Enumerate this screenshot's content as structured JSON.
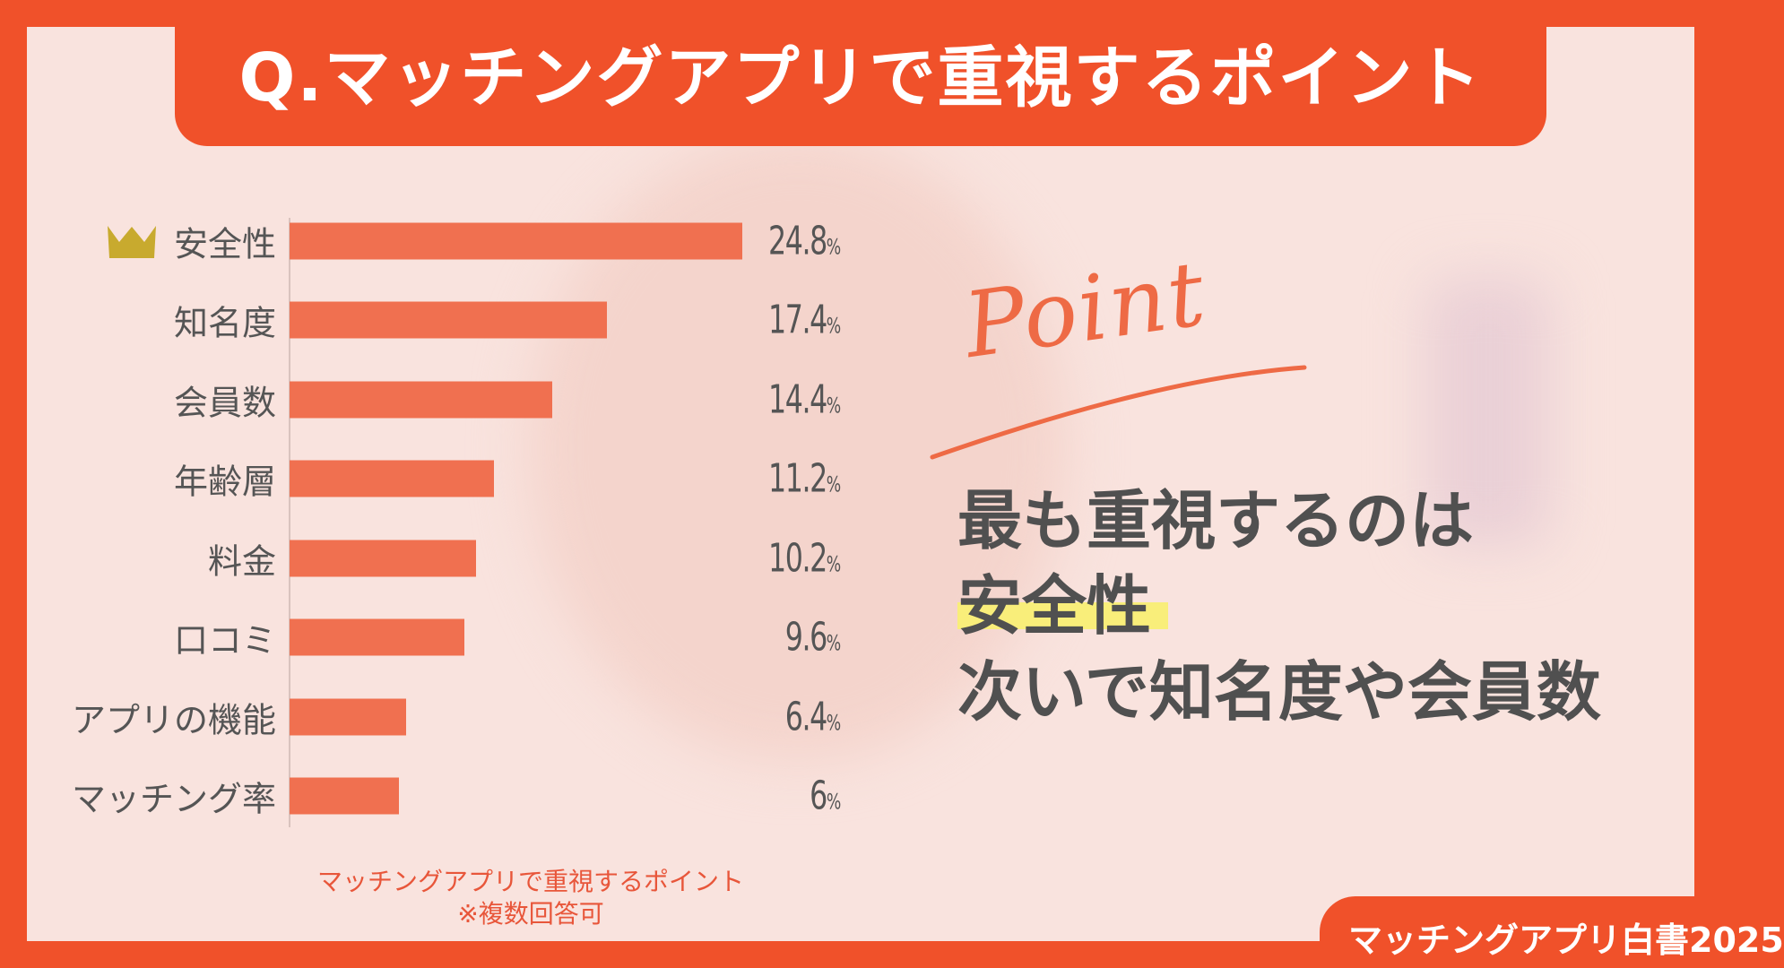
{
  "title": "Q.マッチングアプリで重視するポイント",
  "chart_data": {
    "type": "bar",
    "orientation": "horizontal",
    "categories": [
      "安全性",
      "知名度",
      "会員数",
      "年齢層",
      "料金",
      "口コミ",
      "アプリの機能",
      "マッチング率"
    ],
    "values": [
      24.8,
      17.4,
      14.4,
      11.2,
      10.2,
      9.6,
      6.4,
      6
    ],
    "value_labels": [
      "24.8",
      "17.4",
      "14.4",
      "11.2",
      "10.2",
      "9.6",
      "6.4",
      "6"
    ],
    "unit": "%",
    "bar_color": "#F07050",
    "top_marker": "crown-icon",
    "caption": [
      "マッチングアプリで重視するポイント",
      "※複数回答可"
    ]
  },
  "point": {
    "script_word": "Point",
    "lines": [
      "最も重視するのは",
      "安全性",
      "次いで知名度や会員数"
    ],
    "highlight_color": "#F9EE7A"
  },
  "badge": "マッチングアプリ白書2025",
  "colors": {
    "accent": "#F0512A",
    "background": "#F9E3DE",
    "text": "#505050"
  }
}
